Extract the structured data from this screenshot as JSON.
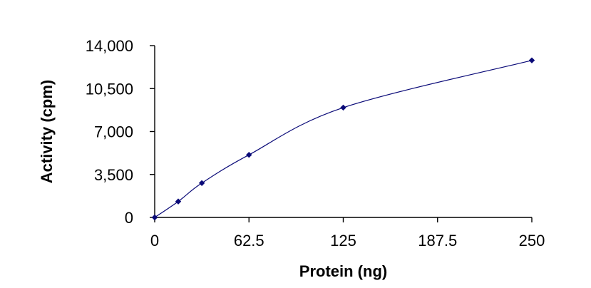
{
  "chart_data": {
    "type": "scatter",
    "title": "",
    "xlabel": "Protein (ng)",
    "ylabel": "Activity (cpm)",
    "x_ticks": [
      "0",
      "62.5",
      "125",
      "187.5",
      "250"
    ],
    "y_ticks": [
      "0",
      "3,500",
      "7,000",
      "10,500",
      "14,000"
    ],
    "xlim": [
      0,
      250
    ],
    "ylim": [
      0,
      14000
    ],
    "grid": false,
    "legend": "none",
    "series": [
      {
        "x": [
          0,
          15.6,
          31.25,
          62.5,
          125,
          250
        ],
        "y": [
          0,
          1300,
          2800,
          5100,
          8950,
          12800
        ],
        "color": "#0a0a78",
        "smooth_line": true
      }
    ]
  }
}
